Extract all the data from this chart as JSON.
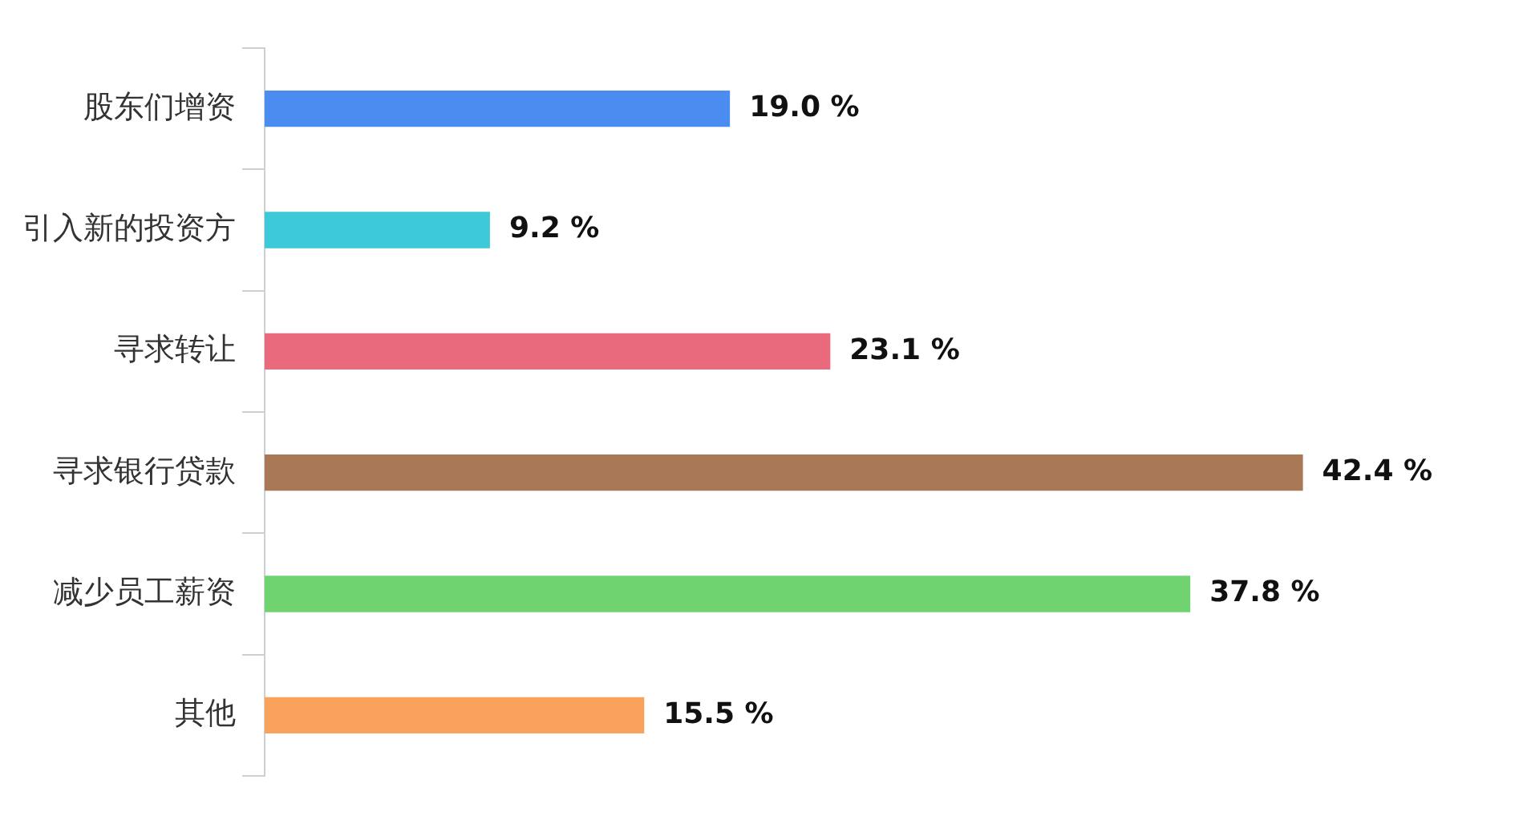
{
  "chart_data": {
    "type": "bar",
    "orientation": "horizontal",
    "categories": [
      "股东们增资",
      "引入新的投资方",
      "寻求转让",
      "寻求银行贷款",
      "减少员工薪资",
      "其他"
    ],
    "values": [
      19.0,
      9.2,
      23.1,
      42.4,
      37.8,
      15.5
    ],
    "colors": [
      "#4a8cf0",
      "#3ec9d9",
      "#e96a7c",
      "#a97856",
      "#6fd46f",
      "#f8a25c"
    ],
    "value_labels": [
      "19.0 %",
      "9.2 %",
      "23.1 %",
      "42.4 %",
      "37.8 %",
      "15.5 %"
    ],
    "grid": false,
    "legend": false,
    "tick_labels": "y"
  }
}
